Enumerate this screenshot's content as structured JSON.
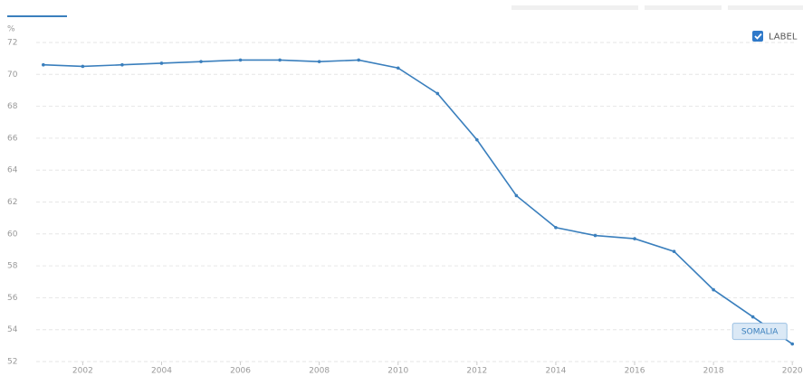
{
  "chart_data": {
    "type": "line",
    "y_axis_label": "%",
    "toggle_label": "LABEL",
    "x": [
      2001,
      2002,
      2003,
      2004,
      2005,
      2006,
      2007,
      2008,
      2009,
      2010,
      2011,
      2012,
      2013,
      2014,
      2015,
      2016,
      2017,
      2018,
      2019,
      2020
    ],
    "series": [
      {
        "name": "SOMALIA",
        "color": "#3a7fbd",
        "values": [
          70.6,
          70.5,
          70.6,
          70.7,
          70.8,
          70.9,
          70.9,
          70.8,
          70.9,
          70.4,
          68.8,
          65.9,
          62.4,
          60.4,
          59.9,
          59.7,
          58.9,
          56.5,
          54.8,
          53.1
        ]
      }
    ],
    "xlim": [
      2000.82,
      2020.11
    ],
    "xticks": [
      2002,
      2004,
      2006,
      2008,
      2010,
      2012,
      2014,
      2016,
      2018,
      2020
    ],
    "ylim": [
      52,
      72
    ],
    "yticks": [
      52,
      54,
      56,
      58,
      60,
      62,
      64,
      66,
      68,
      70,
      72
    ],
    "grid": true
  }
}
